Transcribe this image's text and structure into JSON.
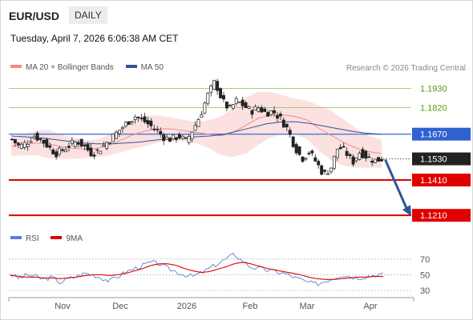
{
  "header": {
    "pair": "EUR/USD",
    "timeframe": "DAILY"
  },
  "datetime": "Tuesday, April 7, 2026 6:06:38 AM CET",
  "legend": {
    "bollinger": {
      "label": "MA 20 + Bollinger Bands",
      "color": "#f08c8c"
    },
    "ma50": {
      "label": "MA 50",
      "color": "#2f5597"
    }
  },
  "research": "Research © 2026 Trading Central",
  "rsi_legend": {
    "rsi": {
      "label": "RSI",
      "color": "#5b7fd6"
    },
    "ma9": {
      "label": "9MA",
      "color": "#e00000"
    }
  },
  "chart_data": [
    {
      "type": "candlestick",
      "title": "EUR/USD daily",
      "x_ticks": [
        "Nov",
        "Dec",
        "2026",
        "Feb",
        "Mar",
        "Apr"
      ],
      "ylim": [
        1.117,
        1.1995
      ],
      "levels": [
        {
          "label": "1.1930",
          "value": 1.193,
          "kind": "resistance",
          "color": "#8fbf4d",
          "text_color": "#5a9a10"
        },
        {
          "label": "1.1820",
          "value": 1.182,
          "kind": "resistance",
          "color": "#8fbf4d",
          "text_color": "#5a9a10"
        },
        {
          "label": "1.1670",
          "value": 1.167,
          "kind": "pivot",
          "color": "#4a78d8",
          "text_color": "#ffffff",
          "box": "#2f62d1"
        },
        {
          "label": "1.1530",
          "value": 1.153,
          "kind": "last",
          "color": "#555555",
          "text_color": "#ffffff",
          "box": "#222222"
        },
        {
          "label": "1.1410",
          "value": 1.141,
          "kind": "support",
          "color": "#e00000",
          "text_color": "#ffffff",
          "box": "#e00000"
        },
        {
          "label": "1.1210",
          "value": 1.121,
          "kind": "support",
          "color": "#e00000",
          "text_color": "#ffffff",
          "box": "#e00000"
        }
      ],
      "forecast_arrow": {
        "from": 1.153,
        "to": 1.121,
        "color": "#2f5597"
      },
      "anchors": [
        1.164,
        1.16,
        1.162,
        1.166,
        1.164,
        1.16,
        1.156,
        1.158,
        1.161,
        1.163,
        1.16,
        1.156,
        1.158,
        1.162,
        1.166,
        1.17,
        1.174,
        1.177,
        1.175,
        1.172,
        1.169,
        1.165,
        1.164,
        1.166,
        1.163,
        1.17,
        1.178,
        1.189,
        1.197,
        1.186,
        1.181,
        1.186,
        1.183,
        1.18,
        1.182,
        1.179,
        1.18,
        1.176,
        1.17,
        1.16,
        1.153,
        1.157,
        1.151,
        1.144,
        1.148,
        1.16,
        1.157,
        1.151,
        1.157,
        1.154,
        1.152,
        1.153
      ],
      "ma20": [
        1.16,
        1.161,
        1.162,
        1.1615,
        1.16,
        1.159,
        1.1585,
        1.159,
        1.161,
        1.164,
        1.167,
        1.169,
        1.17,
        1.17,
        1.169,
        1.168,
        1.167,
        1.166,
        1.168,
        1.172,
        1.176,
        1.178,
        1.178,
        1.177,
        1.175,
        1.17,
        1.166,
        1.162,
        1.159,
        1.157,
        1.156
      ],
      "ma50": [
        1.166,
        1.1655,
        1.165,
        1.164,
        1.163,
        1.162,
        1.1615,
        1.1615,
        1.162,
        1.1625,
        1.1635,
        1.1645,
        1.165,
        1.1655,
        1.166,
        1.167,
        1.169,
        1.171,
        1.173,
        1.174,
        1.174,
        1.173,
        1.1715,
        1.17,
        1.1685,
        1.1675,
        1.167
      ],
      "bb_width": [
        0.0055,
        0.006,
        0.007,
        0.008,
        0.007,
        0.006,
        0.005,
        0.005,
        0.006,
        0.007,
        0.008,
        0.0085,
        0.0075,
        0.0065,
        0.006,
        0.006,
        0.008,
        0.011,
        0.014,
        0.016,
        0.015,
        0.013,
        0.011,
        0.01,
        0.011,
        0.013,
        0.014,
        0.013,
        0.011,
        0.009,
        0.008
      ]
    },
    {
      "type": "line",
      "title": "RSI",
      "ylim": [
        25,
        80
      ],
      "y_ticks": [
        70,
        50,
        30
      ],
      "series": [
        {
          "name": "RSI",
          "values": [
            52,
            45,
            50,
            48,
            44,
            47,
            40,
            45,
            48,
            52,
            50,
            46,
            42,
            48,
            54,
            58,
            62,
            66,
            64,
            58,
            54,
            50,
            48,
            52,
            58,
            64,
            70,
            76,
            68,
            60,
            58,
            56,
            54,
            52,
            48,
            44,
            40,
            38,
            42,
            46,
            50,
            48,
            46,
            48,
            50,
            50
          ]
        },
        {
          "name": "9MA",
          "values": [
            49,
            48,
            47,
            47,
            46,
            46,
            45,
            46,
            47,
            49,
            50,
            50,
            49,
            50,
            52,
            55,
            58,
            62,
            64,
            64,
            62,
            58,
            55,
            53,
            54,
            57,
            60,
            64,
            66,
            64,
            61,
            58,
            56,
            54,
            52,
            50,
            47,
            45,
            44,
            44,
            45,
            46,
            47,
            47,
            48,
            48
          ]
        }
      ]
    }
  ]
}
